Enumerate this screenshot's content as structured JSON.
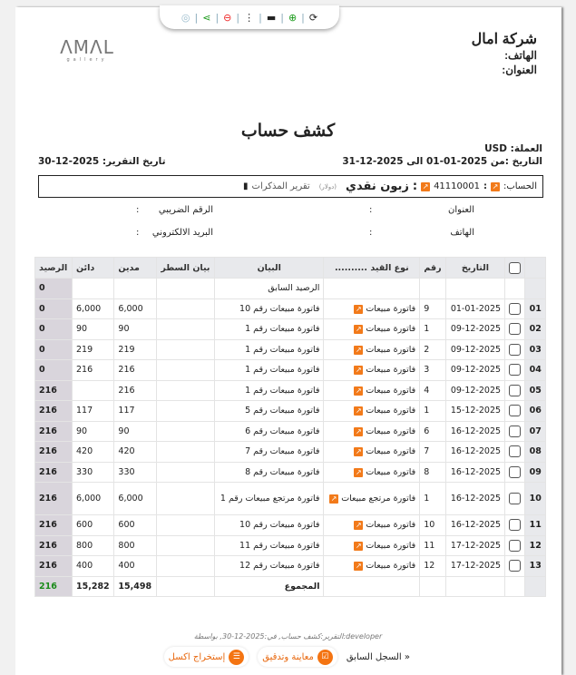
{
  "toolbar": {
    "icons": [
      "refresh-icon",
      "zoom-in-icon",
      "print-icon",
      "more-icon",
      "zoom-out-icon",
      "share-icon",
      "settings-icon"
    ]
  },
  "company": {
    "name": "شركة امال",
    "phone_label": "الهاتف:",
    "address_label": "العنوان:",
    "logo_text": "AMAL gallery"
  },
  "title": "كشف حساب",
  "meta": {
    "currency": "العملة: USD",
    "period": "التاريخ :من 2025-01-01 الى 2025-12-31",
    "report_date": "تاريخ التقرير: 2025-12-30"
  },
  "account": {
    "label": "الحساب:",
    "sep": ":",
    "number": "41110001",
    "name": "زبون نقدي",
    "currency": "(دولار)",
    "notes_link": "تقرير المذكرات"
  },
  "info": {
    "address": "العنوان",
    "phone": "الهاتف",
    "tax": "الرقم الضريبي",
    "email": "البريد الالكتروني",
    "colon": ":"
  },
  "table": {
    "headers": [
      "",
      "التاريخ",
      "رقم",
      "نوع القيد ..........",
      "البيان",
      "بيان السطر",
      "مدين",
      "دائن",
      "الرصيد"
    ],
    "opening": {
      "statement": "الرصيد السابق",
      "balance": "0"
    },
    "rows": [
      {
        "idx": "01",
        "date": "01-01-2025",
        "no": "9",
        "type": "فاتورة مبيعات",
        "statement": "فاتورة مبيعات رقم 10",
        "debit": "6,000",
        "credit": "6,000",
        "balance": "0"
      },
      {
        "idx": "02",
        "date": "09-12-2025",
        "no": "1",
        "type": "فاتورة مبيعات",
        "statement": "فاتورة مبيعات رقم 1",
        "debit": "90",
        "credit": "90",
        "balance": "0"
      },
      {
        "idx": "03",
        "date": "09-12-2025",
        "no": "2",
        "type": "فاتورة مبيعات",
        "statement": "فاتورة مبيعات رقم 1",
        "debit": "219",
        "credit": "219",
        "balance": "0"
      },
      {
        "idx": "04",
        "date": "09-12-2025",
        "no": "3",
        "type": "فاتورة مبيعات",
        "statement": "فاتورة مبيعات رقم 1",
        "debit": "216",
        "credit": "216",
        "balance": "0"
      },
      {
        "idx": "05",
        "date": "09-12-2025",
        "no": "4",
        "type": "فاتورة مبيعات",
        "statement": "فاتورة مبيعات رقم 1",
        "debit": "216",
        "credit": "",
        "balance": "216"
      },
      {
        "idx": "06",
        "date": "15-12-2025",
        "no": "1",
        "type": "فاتورة مبيعات",
        "statement": "فاتورة مبيعات رقم 5",
        "debit": "117",
        "credit": "117",
        "balance": "216"
      },
      {
        "idx": "07",
        "date": "16-12-2025",
        "no": "6",
        "type": "فاتورة مبيعات",
        "statement": "فاتورة مبيعات رقم 6",
        "debit": "90",
        "credit": "90",
        "balance": "216"
      },
      {
        "idx": "08",
        "date": "16-12-2025",
        "no": "7",
        "type": "فاتورة مبيعات",
        "statement": "فاتورة مبيعات رقم 7",
        "debit": "420",
        "credit": "420",
        "balance": "216"
      },
      {
        "idx": "09",
        "date": "16-12-2025",
        "no": "8",
        "type": "فاتورة مبيعات",
        "statement": "فاتورة مبيعات رقم 8",
        "debit": "330",
        "credit": "330",
        "balance": "216"
      },
      {
        "idx": "10",
        "date": "16-12-2025",
        "no": "1",
        "type": "فاتورة مرتجع مبيعات",
        "statement": "فاتورة مرتجع مبيعات رقم 1",
        "debit": "6,000",
        "credit": "6,000",
        "balance": "216"
      },
      {
        "idx": "11",
        "date": "16-12-2025",
        "no": "10",
        "type": "فاتورة مبيعات",
        "statement": "فاتورة مبيعات رقم 10",
        "debit": "600",
        "credit": "600",
        "balance": "216"
      },
      {
        "idx": "12",
        "date": "17-12-2025",
        "no": "11",
        "type": "فاتورة مبيعات",
        "statement": "فاتورة مبيعات رقم 11",
        "debit": "800",
        "credit": "800",
        "balance": "216"
      },
      {
        "idx": "13",
        "date": "17-12-2025",
        "no": "12",
        "type": "فاتورة مبيعات",
        "statement": "فاتورة مبيعات رقم 12",
        "debit": "400",
        "credit": "400",
        "balance": "216"
      }
    ],
    "total": {
      "label": "المجموع",
      "debit": "15,498",
      "credit": "15,282",
      "balance": "216",
      "balance_color": "#1a8a1a"
    }
  },
  "footer": {
    "note": "التقرير:كشف حساب, في:2025-12-30, بواسطة:developer",
    "prev": "« السجل السابق",
    "review": "معاينة وتدقيق",
    "excel": "إستخراج اكسل"
  },
  "colors": {
    "accent": "#f47412"
  }
}
